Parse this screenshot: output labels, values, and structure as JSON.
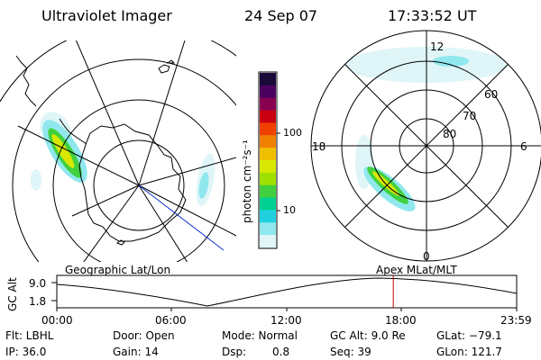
{
  "header": {
    "instrument": "Ultraviolet Imager",
    "date": "24 Sep 07",
    "time": "17:33:52 UT"
  },
  "colorbar": {
    "unit_label": "photon cm⁻²s⁻¹",
    "ticks": [
      "100",
      "10"
    ],
    "scale": "log",
    "colors": [
      "#1a0a3a",
      "#4b0060",
      "#8a0050",
      "#c80010",
      "#f04000",
      "#f08000",
      "#f0c000",
      "#d8e800",
      "#a0e000",
      "#40d040",
      "#00d090",
      "#20d0e0",
      "#90e8ee",
      "#dff5f7"
    ]
  },
  "polar_plot": {
    "mlt_labels": {
      "top": "12",
      "left": "18",
      "right": "6",
      "bottom": "0"
    },
    "lat_labels": [
      "60",
      "70",
      "80"
    ]
  },
  "timeline": {
    "y_axis_label": "GC Alt",
    "y_ticks": [
      "9.0",
      "1.8"
    ],
    "left_title": "Geographic Lat/Lon",
    "right_title": "Apex MLat/MLT",
    "x_ticks": [
      "00:00",
      "06:00",
      "12:00",
      "18:00",
      "23:59"
    ],
    "current_time_fraction": 0.7317,
    "marker_color": "#c00000"
  },
  "status": {
    "filter": "Flt: LBHL",
    "ip": "IP: 36.0",
    "door": "Door: Open",
    "gain": "Gain: 14",
    "mode": "Mode: Normal",
    "dsp_label": "Dsp:",
    "dsp_value": "0.8",
    "gc_alt": "GC Alt: 9.0 Re",
    "seq": "Seq: 39",
    "glat": "GLat: −79.1",
    "glon": "GLon: 121.7"
  }
}
